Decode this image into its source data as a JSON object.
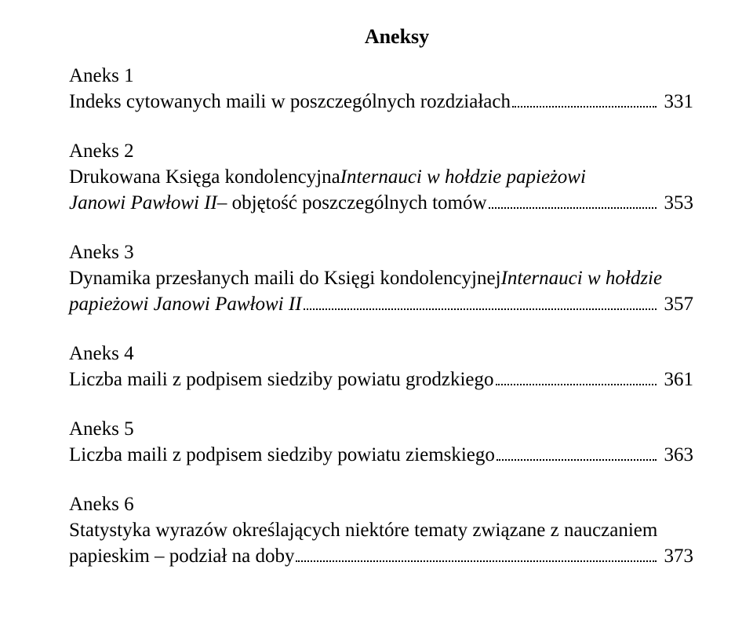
{
  "title": "Aneksy",
  "font": {
    "family": "Times New Roman",
    "title_size_pt": 20,
    "body_size_pt": 19
  },
  "colors": {
    "text": "#000000",
    "background": "#ffffff"
  },
  "entries": [
    {
      "heading": "Aneks 1",
      "lines": [
        {
          "segments": [
            {
              "text": "Indeks cytowanych maili w poszczególnych rozdziałach",
              "italic": false
            }
          ],
          "page": "331"
        }
      ]
    },
    {
      "heading": "Aneks 2",
      "lines": [
        {
          "segments": [
            {
              "text": "Drukowana Księga kondolencyjna ",
              "italic": false
            },
            {
              "text": "Internauci w hołdzie papieżowi",
              "italic": true
            }
          ],
          "page": null
        },
        {
          "segments": [
            {
              "text": "Janowi Pawłowi II",
              "italic": true
            },
            {
              "text": " – objętość poszczególnych tomów",
              "italic": false
            }
          ],
          "page": "353"
        }
      ]
    },
    {
      "heading": "Aneks 3",
      "lines": [
        {
          "segments": [
            {
              "text": "Dynamika przesłanych maili do Księgi kondolencyjnej ",
              "italic": false
            },
            {
              "text": "Internauci w hołdzie",
              "italic": true
            }
          ],
          "page": null
        },
        {
          "segments": [
            {
              "text": "papieżowi Janowi Pawłowi II",
              "italic": true
            }
          ],
          "page": "357"
        }
      ]
    },
    {
      "heading": "Aneks 4",
      "lines": [
        {
          "segments": [
            {
              "text": "Liczba maili z podpisem siedziby powiatu grodzkiego",
              "italic": false
            }
          ],
          "page": "361"
        }
      ]
    },
    {
      "heading": "Aneks 5",
      "lines": [
        {
          "segments": [
            {
              "text": "Liczba maili z podpisem siedziby powiatu ziemskiego",
              "italic": false
            }
          ],
          "page": "363"
        }
      ]
    },
    {
      "heading": "Aneks 6",
      "lines": [
        {
          "segments": [
            {
              "text": "Statystyka wyrazów określających niektóre tematy związane z nauczaniem",
              "italic": false
            }
          ],
          "page": null
        },
        {
          "segments": [
            {
              "text": "papieskim – podział na doby",
              "italic": false
            }
          ],
          "page": "373"
        }
      ]
    }
  ]
}
